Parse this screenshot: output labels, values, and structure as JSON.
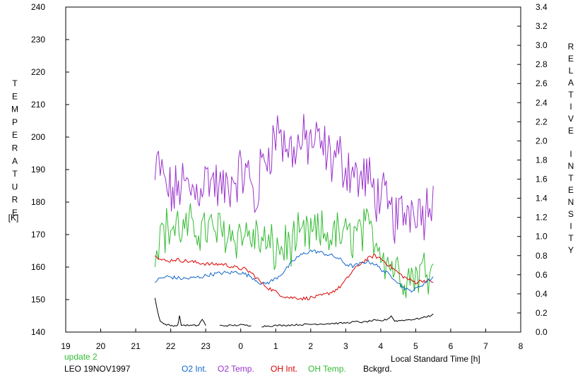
{
  "chart_data": {
    "type": "line",
    "title": "",
    "xlabel": "Local Standard Time [h]",
    "ylabel_left": [
      "T",
      "E",
      "M",
      "P",
      "E",
      "R",
      "A",
      "T",
      "U",
      "R",
      "E"
    ],
    "ylabel_left_unit": "[K]",
    "ylabel_right_words": [
      [
        "R",
        "E",
        "L",
        "A",
        "T",
        "I",
        "V",
        "E"
      ],
      [
        "I",
        "N",
        "T",
        "E",
        "N",
        "S",
        "I",
        "T",
        "Y"
      ]
    ],
    "xlim": [
      19,
      32
    ],
    "x_tick_values": [
      19,
      20,
      21,
      22,
      23,
      24,
      25,
      26,
      27,
      28,
      29,
      30,
      31,
      32
    ],
    "x_tick_labels": [
      "19",
      "20",
      "21",
      "22",
      "23",
      "0",
      "1",
      "2",
      "3",
      "4",
      "5",
      "6",
      "7",
      "8"
    ],
    "ylim_left": [
      140,
      240
    ],
    "y_left_ticks": [
      140,
      150,
      160,
      170,
      180,
      190,
      200,
      210,
      220,
      230,
      240
    ],
    "y_left_tick_labels": [
      "140",
      "150",
      "160",
      "170",
      "180",
      "190",
      "200",
      "210",
      "220",
      "230",
      "240"
    ],
    "ylim_right": [
      0,
      3.4
    ],
    "y_right_ticks": [
      0,
      0.2,
      0.4,
      0.6,
      0.8,
      1.0,
      1.2,
      1.4,
      1.6,
      1.8,
      2.0,
      2.2,
      2.4,
      2.6,
      2.8,
      3.0,
      3.2,
      3.4
    ],
    "y_right_tick_labels": [
      "0.0",
      "0.2",
      "0.4",
      "0.6",
      "0.8",
      "1.0",
      "1.2",
      "1.4",
      "1.6",
      "1.8",
      "2.0",
      "2.2",
      "2.4",
      "2.6",
      "2.8",
      "3.0",
      "3.2",
      "3.4"
    ],
    "grid": false,
    "legend_position": "bottom",
    "status_text": "update 2",
    "site_date": "LEO 19NOV1997",
    "series": [
      {
        "name": "O2 Temp.",
        "axis": "left",
        "color": "#9933cc",
        "x": [
          21.55,
          21.65,
          21.75,
          21.9,
          22.1,
          22.3,
          22.5,
          22.7,
          22.9,
          23.1,
          23.3,
          23.5,
          23.7,
          23.9,
          24.1,
          24.3,
          24.4,
          24.6,
          24.8,
          25.0,
          25.1,
          25.2,
          25.4,
          25.6,
          25.8,
          26.0,
          26.2,
          26.4,
          26.6,
          26.8,
          27.0,
          27.2,
          27.4,
          27.6,
          27.8,
          28.0,
          28.2,
          28.4,
          28.6,
          28.8,
          29.0,
          29.2,
          29.4,
          29.5
        ],
        "y": [
          186,
          192,
          188,
          184,
          182,
          186,
          184,
          183,
          186,
          188,
          185,
          183,
          186,
          188,
          189,
          187,
          178,
          191,
          196,
          200,
          204,
          198,
          196,
          197,
          198,
          199,
          198,
          196,
          193,
          194,
          191,
          190,
          186,
          188,
          183,
          182,
          178,
          175,
          176,
          178,
          180,
          177,
          180,
          185
        ],
        "noise": 7
      },
      {
        "name": "OH Temp.",
        "axis": "left",
        "color": "#33bb33",
        "x": [
          21.55,
          21.65,
          21.8,
          22.0,
          22.2,
          22.4,
          22.6,
          22.8,
          23.0,
          23.2,
          23.4,
          23.6,
          23.8,
          24.0,
          24.2,
          24.4,
          24.6,
          24.8,
          25.0,
          25.2,
          25.4,
          25.6,
          25.8,
          26.0,
          26.2,
          26.4,
          26.6,
          26.8,
          27.0,
          27.2,
          27.4,
          27.6,
          27.8,
          28.0,
          28.2,
          28.4,
          28.6,
          28.8,
          29.0,
          29.2,
          29.4,
          29.5
        ],
        "y": [
          163,
          170,
          171,
          172,
          172,
          171,
          172,
          172,
          172,
          171,
          171,
          171,
          170,
          170,
          170,
          169,
          168,
          166,
          165,
          166,
          167,
          168,
          169,
          170,
          170,
          170,
          170,
          170,
          169,
          170,
          171,
          171,
          170,
          166,
          162,
          160,
          158,
          157,
          158,
          159,
          160,
          161
        ],
        "noise": 6
      },
      {
        "name": "OH Int.",
        "axis": "right",
        "color": "#dd0000",
        "x": [
          21.55,
          21.7,
          21.9,
          22.1,
          22.3,
          22.5,
          22.7,
          22.9,
          23.1,
          23.3,
          23.5,
          23.7,
          23.9,
          24.1,
          24.3,
          24.5,
          24.6,
          24.8,
          25.0,
          25.2,
          25.4,
          25.6,
          25.8,
          26.0,
          26.2,
          26.4,
          26.6,
          26.8,
          27.0,
          27.2,
          27.4,
          27.6,
          27.8,
          28.0,
          28.2,
          28.4,
          28.6,
          28.8,
          29.0,
          29.2,
          29.4,
          29.5
        ],
        "y": [
          0.82,
          0.76,
          0.74,
          0.76,
          0.75,
          0.74,
          0.73,
          0.72,
          0.71,
          0.71,
          0.71,
          0.69,
          0.67,
          0.66,
          0.62,
          0.55,
          0.51,
          0.46,
          0.42,
          0.38,
          0.36,
          0.36,
          0.35,
          0.36,
          0.37,
          0.39,
          0.42,
          0.46,
          0.54,
          0.64,
          0.71,
          0.76,
          0.8,
          0.77,
          0.71,
          0.65,
          0.59,
          0.55,
          0.52,
          0.54,
          0.53,
          0.52
        ],
        "noise": 0.02
      },
      {
        "name": "O2 Int.",
        "axis": "right",
        "color": "#1166cc",
        "x": [
          21.55,
          21.7,
          21.9,
          22.1,
          22.3,
          22.5,
          22.7,
          22.9,
          23.1,
          23.3,
          23.5,
          23.7,
          23.9,
          24.1,
          24.3,
          24.5,
          24.6,
          24.8,
          25.0,
          25.2,
          25.4,
          25.6,
          25.8,
          26.0,
          26.2,
          26.4,
          26.6,
          26.8,
          27.0,
          27.2,
          27.4,
          27.6,
          27.8,
          28.0,
          28.2,
          28.4,
          28.6,
          28.8,
          29.0,
          29.2,
          29.4,
          29.5
        ],
        "y": [
          0.53,
          0.56,
          0.58,
          0.57,
          0.56,
          0.56,
          0.57,
          0.58,
          0.6,
          0.61,
          0.62,
          0.62,
          0.63,
          0.61,
          0.58,
          0.53,
          0.5,
          0.52,
          0.56,
          0.62,
          0.7,
          0.78,
          0.82,
          0.85,
          0.84,
          0.82,
          0.8,
          0.77,
          0.71,
          0.69,
          0.71,
          0.74,
          0.72,
          0.66,
          0.61,
          0.56,
          0.48,
          0.43,
          0.45,
          0.5,
          0.55,
          0.58
        ],
        "noise": 0.02
      },
      {
        "name": "Bckgrd.",
        "axis": "left",
        "color": "#000000",
        "x": [
          21.55,
          21.62,
          21.7,
          21.8,
          22.0,
          22.2,
          22.25,
          22.3,
          22.6,
          22.8,
          22.9,
          23.0,
          23.1,
          23.4,
          23.7,
          24.0,
          24.3,
          24.35,
          24.6,
          25.0,
          25.5,
          26.0,
          26.5,
          27.0,
          27.3,
          27.5,
          27.8,
          28.0,
          28.2,
          28.3,
          28.4,
          28.6,
          28.8,
          29.0,
          29.2,
          29.4,
          29.5
        ],
        "y": [
          150.5,
          146.5,
          143.5,
          142.5,
          142.0,
          142.0,
          145.0,
          142.2,
          142.0,
          142.1,
          144.0,
          142.0,
          null,
          142.0,
          142.0,
          142.2,
          142.0,
          null,
          141.8,
          142.0,
          142.2,
          142.4,
          142.6,
          142.8,
          143.2,
          143.0,
          143.6,
          143.4,
          144.0,
          145.0,
          143.4,
          143.6,
          143.8,
          144.0,
          144.4,
          145.0,
          145.6
        ],
        "noise": 0.25
      }
    ]
  }
}
